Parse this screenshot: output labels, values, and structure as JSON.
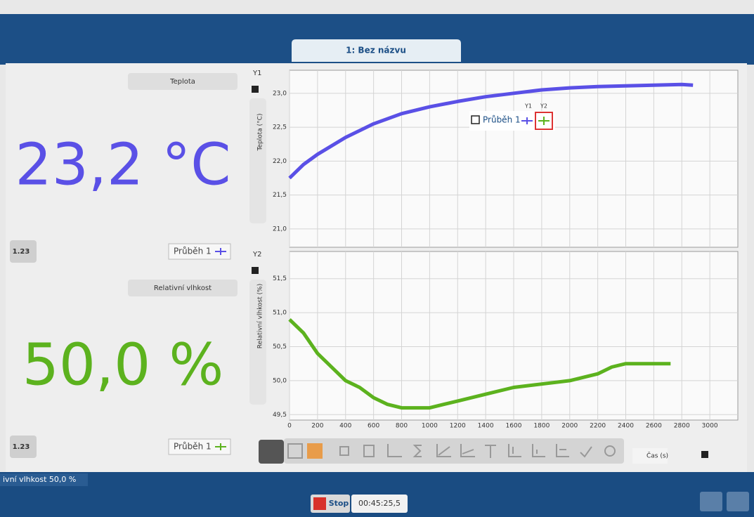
{
  "tab": {
    "title": "1: Bez názvu"
  },
  "left_panel": {
    "sensors": [
      {
        "name": "Teplota",
        "reading": "23,2 °C",
        "button": "1.23",
        "legend": "Průběh 1"
      },
      {
        "name": "Relativní vlhkost",
        "reading": "50,0 %",
        "button": "1.23",
        "legend": "Průběh 1"
      }
    ]
  },
  "legend_columns": [
    "Y1",
    "Y2"
  ],
  "status": {
    "readout": "ivní vlhkost 50,0 %",
    "stop": "Stop",
    "time": "00:45:25,5"
  },
  "chart_data": [
    {
      "type": "line",
      "axis_name": "Y1",
      "y_label": "Teplota (°C)",
      "x": [
        0,
        100,
        200,
        400,
        600,
        800,
        1000,
        1200,
        1400,
        1600,
        1800,
        2000,
        2200,
        2400,
        2600,
        2800,
        2880
      ],
      "series": [
        {
          "name": "Průběh 1",
          "color": "#5a50e6",
          "values": [
            21.75,
            21.95,
            22.1,
            22.35,
            22.55,
            22.7,
            22.8,
            22.88,
            22.95,
            23.0,
            23.05,
            23.08,
            23.1,
            23.11,
            23.12,
            23.13,
            23.12
          ]
        }
      ],
      "xlim": [
        0,
        3200
      ],
      "ylim": [
        20.73,
        23.34
      ],
      "xticks": [
        0,
        200,
        400,
        600,
        800,
        1000,
        1200,
        1400,
        1600,
        1800,
        2000,
        2200,
        2400,
        2600,
        2800,
        3000
      ],
      "x_tick_labels": false,
      "yticks": [
        {
          "value": 21.0,
          "label": "21,0"
        },
        {
          "value": 21.5,
          "label": "21,5"
        },
        {
          "value": 22.0,
          "label": "22,0"
        },
        {
          "value": 22.5,
          "label": "22,5"
        },
        {
          "value": 23.0,
          "label": "23,0"
        }
      ],
      "grid": true
    },
    {
      "type": "line",
      "axis_name": "Y2",
      "y_label": "Relativní vlhkost (%)",
      "x_label": "Čas (s)",
      "x": [
        0,
        100,
        200,
        300,
        400,
        500,
        600,
        700,
        800,
        1000,
        1100,
        1200,
        1300,
        1400,
        1600,
        1800,
        2000,
        2200,
        2300,
        2400,
        2600,
        2720
      ],
      "series": [
        {
          "name": "Průběh 1",
          "color": "#5cb21e",
          "values": [
            50.9,
            50.7,
            50.4,
            50.2,
            50.0,
            49.9,
            49.75,
            49.65,
            49.6,
            49.6,
            49.65,
            49.7,
            49.75,
            49.8,
            49.9,
            49.95,
            50.0,
            50.1,
            50.2,
            50.25,
            50.25,
            50.25
          ]
        }
      ],
      "xlim": [
        0,
        3200
      ],
      "ylim": [
        49.42,
        51.9
      ],
      "xticks": [
        0,
        200,
        400,
        600,
        800,
        1000,
        1200,
        1400,
        1600,
        1800,
        2000,
        2200,
        2400,
        2600,
        2800,
        3000
      ],
      "x_tick_labels": true,
      "yticks": [
        {
          "value": 49.5,
          "label": "49,5"
        },
        {
          "value": 50.0,
          "label": "50,0"
        },
        {
          "value": 50.5,
          "label": "50,5"
        },
        {
          "value": 51.0,
          "label": "51,0"
        },
        {
          "value": 51.5,
          "label": "51,5"
        }
      ],
      "grid": true
    }
  ]
}
